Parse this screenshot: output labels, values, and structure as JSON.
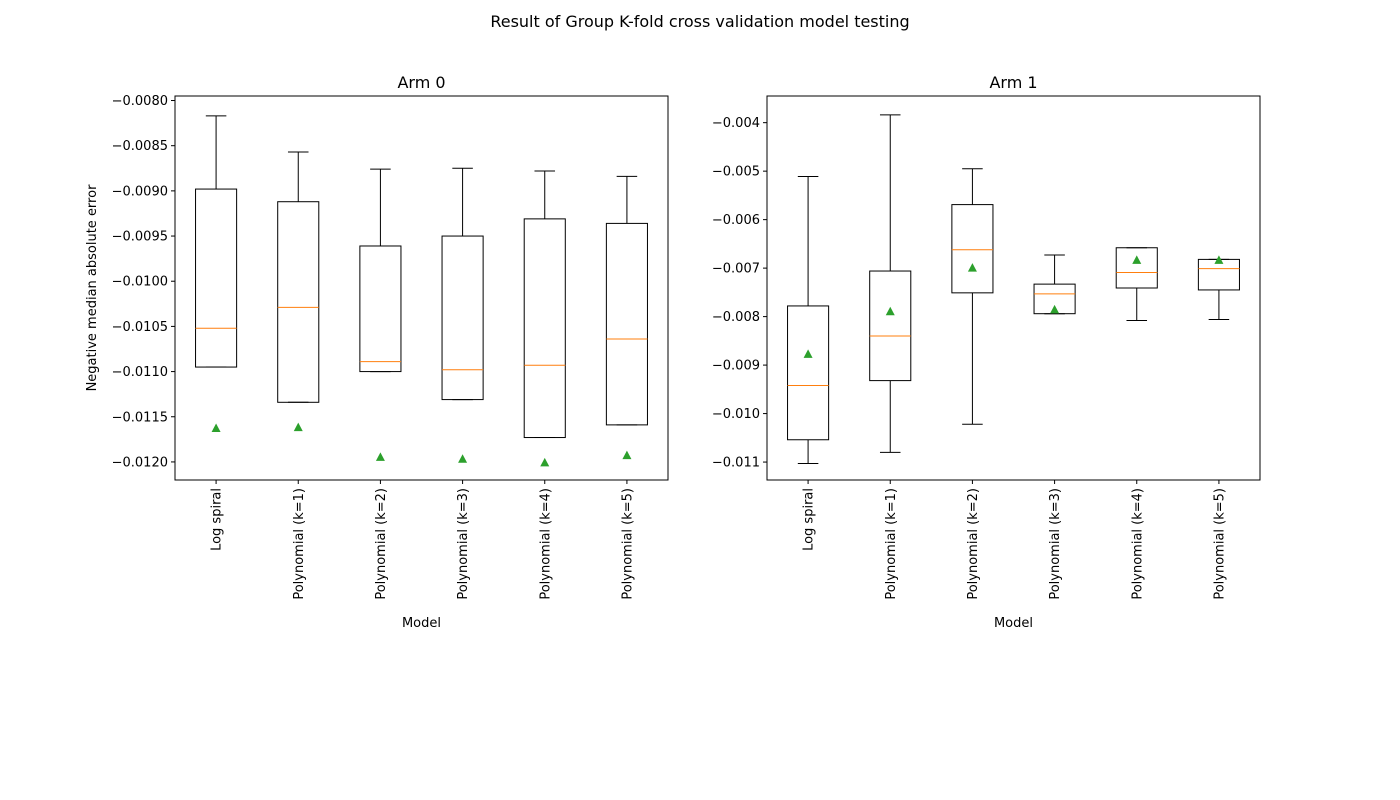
{
  "figure": {
    "suptitle": "Result of Group K-fold cross validation model testing"
  },
  "chart_data": [
    {
      "type": "box",
      "title": "Arm 0",
      "xlabel": "Model",
      "ylabel": "Negative median absolute error",
      "ylim": [
        -0.0122,
        -0.00795
      ],
      "yticks": [
        -0.008,
        -0.0085,
        -0.009,
        -0.0095,
        -0.01,
        -0.0105,
        -0.011,
        -0.0115,
        -0.012
      ],
      "ytick_labels": [
        "−0.0080",
        "−0.0085",
        "−0.0090",
        "−0.0095",
        "−0.0100",
        "−0.0105",
        "−0.0110",
        "−0.0115",
        "−0.0120"
      ],
      "categories": [
        "Log spiral",
        "Polynomial (k=1)",
        "Polynomial (k=2)",
        "Polynomial (k=3)",
        "Polynomial (k=4)",
        "Polynomial (k=5)"
      ],
      "boxes": [
        {
          "whisker_low": -0.01095,
          "q1": -0.01095,
          "median": -0.01052,
          "q3": -0.00898,
          "whisker_high": -0.00817,
          "mean": -0.01163
        },
        {
          "whisker_low": -0.01134,
          "q1": -0.01134,
          "median": -0.01029,
          "q3": -0.00912,
          "whisker_high": -0.00857,
          "mean": -0.01162
        },
        {
          "whisker_low": -0.011,
          "q1": -0.011,
          "median": -0.01089,
          "q3": -0.00961,
          "whisker_high": -0.00876,
          "mean": -0.01195
        },
        {
          "whisker_low": -0.01131,
          "q1": -0.01131,
          "median": -0.01098,
          "q3": -0.0095,
          "whisker_high": -0.00875,
          "mean": -0.01197
        },
        {
          "whisker_low": -0.01173,
          "q1": -0.01173,
          "median": -0.01093,
          "q3": -0.00931,
          "whisker_high": -0.00878,
          "mean": -0.01201
        },
        {
          "whisker_low": -0.01159,
          "q1": -0.01159,
          "median": -0.01064,
          "q3": -0.00936,
          "whisker_high": -0.00884,
          "mean": -0.01193
        }
      ]
    },
    {
      "type": "box",
      "title": "Arm 1",
      "xlabel": "Model",
      "ylabel": "",
      "ylim": [
        -0.01137,
        -0.00345
      ],
      "yticks": [
        -0.004,
        -0.005,
        -0.006,
        -0.007,
        -0.008,
        -0.009,
        -0.01,
        -0.011
      ],
      "ytick_labels": [
        "−0.004",
        "−0.005",
        "−0.006",
        "−0.007",
        "−0.008",
        "−0.009",
        "−0.010",
        "−0.011"
      ],
      "categories": [
        "Log spiral",
        "Polynomial (k=1)",
        "Polynomial (k=2)",
        "Polynomial (k=3)",
        "Polynomial (k=4)",
        "Polynomial (k=5)"
      ],
      "boxes": [
        {
          "whisker_low": -0.01103,
          "q1": -0.01054,
          "median": -0.00942,
          "q3": -0.00778,
          "whisker_high": -0.00511,
          "mean": -0.00878
        },
        {
          "whisker_low": -0.0108,
          "q1": -0.00932,
          "median": -0.0084,
          "q3": -0.00706,
          "whisker_high": -0.00384,
          "mean": -0.0079
        },
        {
          "whisker_low": -0.01022,
          "q1": -0.00751,
          "median": -0.00662,
          "q3": -0.00569,
          "whisker_high": -0.00495,
          "mean": -0.007
        },
        {
          "whisker_low": -0.00794,
          "q1": -0.00794,
          "median": -0.00753,
          "q3": -0.00733,
          "whisker_high": -0.00673,
          "mean": -0.00786
        },
        {
          "whisker_low": -0.00808,
          "q1": -0.00741,
          "median": -0.00709,
          "q3": -0.00658,
          "whisker_high": -0.00658,
          "mean": -0.00684
        },
        {
          "whisker_low": -0.00806,
          "q1": -0.00745,
          "median": -0.00701,
          "q3": -0.00682,
          "whisker_high": -0.00682,
          "mean": -0.00684
        }
      ]
    }
  ],
  "colors": {
    "box": "#000000",
    "median": "#ff7f0e",
    "mean": "#2ca02c"
  }
}
